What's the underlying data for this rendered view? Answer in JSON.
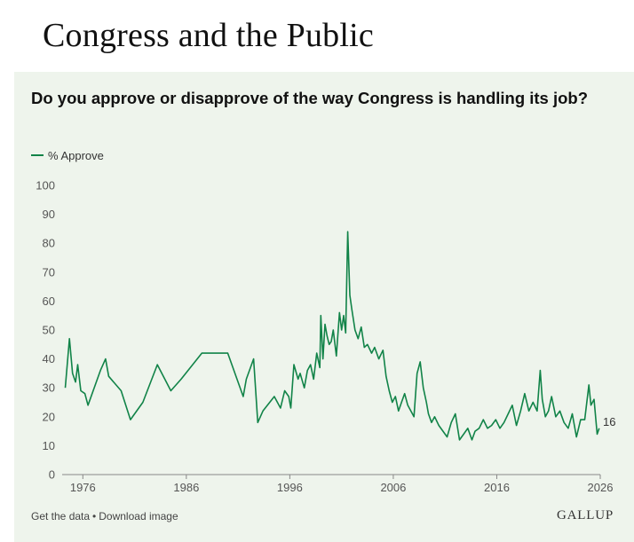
{
  "page": {
    "title": "Congress and the Public"
  },
  "colors": {
    "line": "#118348",
    "panel_background": "#eef4ec",
    "axis_text": "#555555"
  },
  "chart_data": {
    "type": "line",
    "title": "Do you approve or disapprove of the way Congress is handling its job?",
    "xlabel": "",
    "ylabel": "",
    "ylim": [
      0,
      100
    ],
    "y_ticks": [
      0,
      10,
      20,
      30,
      40,
      50,
      60,
      70,
      80,
      90,
      100
    ],
    "xlim": [
      1974,
      2026
    ],
    "x_ticks": [
      1976,
      1986,
      1996,
      2006,
      2016,
      2026
    ],
    "grid": false,
    "legend": {
      "position": "top-left",
      "entries": [
        "% Approve"
      ]
    },
    "end_label": "16",
    "series": [
      {
        "name": "% Approve",
        "x": [
          1974.3,
          1974.7,
          1975.0,
          1975.3,
          1975.5,
          1975.8,
          1976.2,
          1976.5,
          1977.7,
          1978.2,
          1978.5,
          1979.7,
          1980.6,
          1981.8,
          1983.2,
          1984.5,
          1985.5,
          1987.5,
          1990.0,
          1991.5,
          1991.8,
          1992.5,
          1992.9,
          1993.4,
          1994.5,
          1995.1,
          1995.5,
          1995.9,
          1996.1,
          1996.4,
          1996.8,
          1997.0,
          1997.4,
          1997.7,
          1998.0,
          1998.3,
          1998.6,
          1998.9,
          1999.0,
          1999.2,
          1999.4,
          1999.6,
          1999.8,
          2000.0,
          2000.2,
          2000.5,
          2000.8,
          2001.0,
          2001.2,
          2001.4,
          2001.6,
          2001.8,
          2002.0,
          2002.3,
          2002.6,
          2002.9,
          2003.2,
          2003.5,
          2003.9,
          2004.2,
          2004.6,
          2005.0,
          2005.3,
          2005.6,
          2005.9,
          2006.2,
          2006.5,
          2006.8,
          2007.1,
          2007.4,
          2007.7,
          2008.0,
          2008.3,
          2008.6,
          2008.9,
          2009.2,
          2009.4,
          2009.7,
          2010.0,
          2010.4,
          2010.8,
          2011.2,
          2011.6,
          2012.0,
          2012.4,
          2012.8,
          2013.2,
          2013.6,
          2013.9,
          2014.3,
          2014.7,
          2015.1,
          2015.5,
          2015.9,
          2016.3,
          2016.7,
          2017.1,
          2017.5,
          2017.9,
          2018.3,
          2018.7,
          2019.1,
          2019.5,
          2019.9,
          2020.2,
          2020.4,
          2020.7,
          2021.0,
          2021.3,
          2021.7,
          2022.1,
          2022.5,
          2022.9,
          2023.3,
          2023.7,
          2024.1,
          2024.5,
          2024.9,
          2025.1,
          2025.4,
          2025.7,
          2025.9
        ],
        "values": [
          30,
          47,
          35,
          32,
          38,
          29,
          28,
          24,
          36,
          40,
          34,
          29,
          19,
          25,
          38,
          29,
          33,
          42,
          42,
          27,
          33,
          40,
          18,
          22,
          27,
          23,
          29,
          27,
          23,
          38,
          33,
          35,
          30,
          36,
          38,
          33,
          42,
          37,
          55,
          40,
          52,
          48,
          45,
          46,
          50,
          41,
          56,
          50,
          55,
          49,
          84,
          62,
          57,
          50,
          47,
          51,
          44,
          45,
          42,
          44,
          40,
          43,
          34,
          29,
          25,
          27,
          22,
          25,
          28,
          24,
          22,
          20,
          35,
          39,
          30,
          25,
          21,
          18,
          20,
          17,
          15,
          13,
          18,
          21,
          12,
          14,
          16,
          12,
          15,
          16,
          19,
          16,
          17,
          19,
          16,
          18,
          21,
          24,
          17,
          22,
          28,
          22,
          25,
          22,
          36,
          26,
          20,
          22,
          27,
          20,
          22,
          18,
          16,
          21,
          13,
          19,
          19,
          31,
          24,
          26,
          14,
          16
        ]
      }
    ]
  },
  "footer": {
    "get_data": "Get the data",
    "separator": "•",
    "download": "Download image",
    "brand": "GALLUP"
  }
}
